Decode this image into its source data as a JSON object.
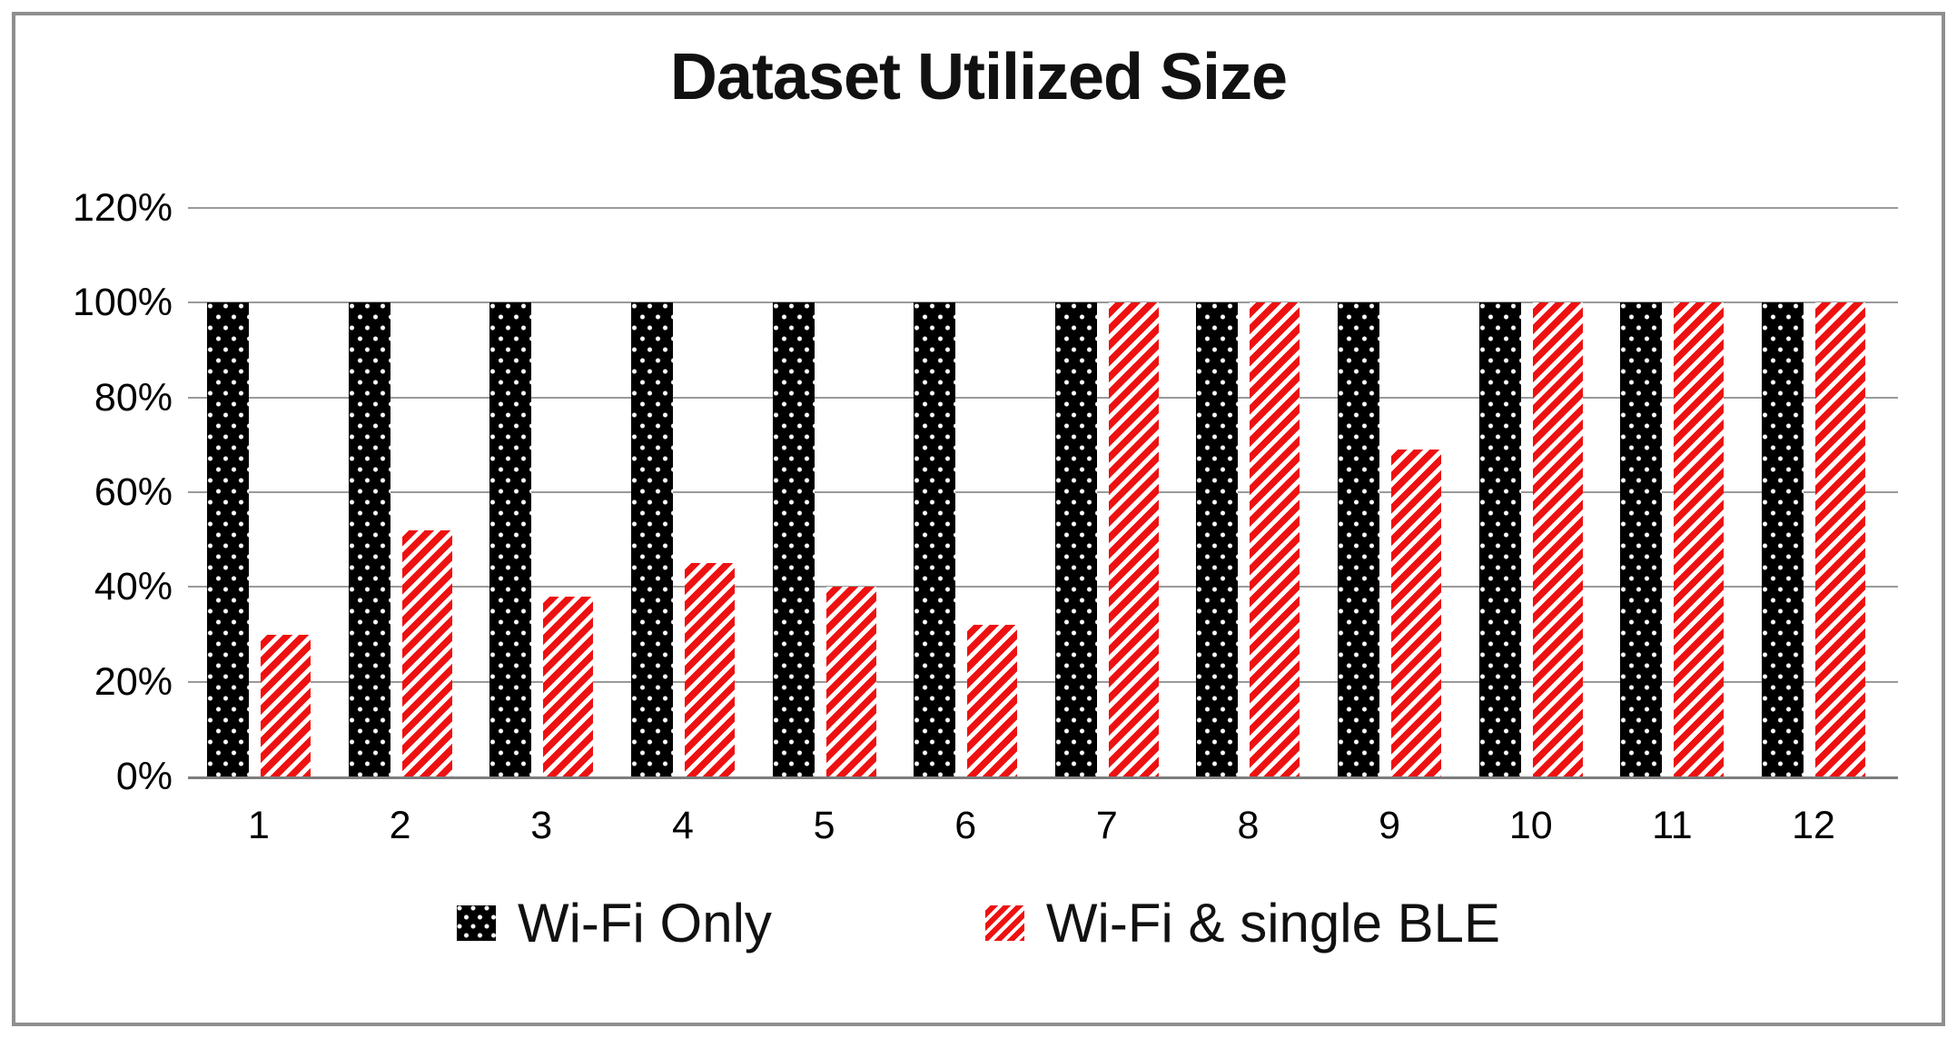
{
  "frame": {
    "border_color": "#8f8f8f"
  },
  "chart_data": {
    "type": "bar",
    "title": "Dataset Utilized Size",
    "categories": [
      "1",
      "2",
      "3",
      "4",
      "5",
      "6",
      "7",
      "8",
      "9",
      "10",
      "11",
      "12"
    ],
    "series": [
      {
        "name": "Wi-Fi Only",
        "pattern": "black-dots",
        "color": "#000000",
        "values": [
          100,
          100,
          100,
          100,
          100,
          100,
          100,
          100,
          100,
          100,
          100,
          100
        ]
      },
      {
        "name": "Wi-Fi & single BLE",
        "pattern": "red-diagonal-hatch",
        "color": "#ee1111",
        "values": [
          30,
          52,
          38,
          45,
          40,
          32,
          100,
          100,
          69,
          100,
          100,
          100
        ]
      }
    ],
    "xlabel": "",
    "ylabel": "",
    "y_ticks": [
      "120%",
      "100%",
      "80%",
      "60%",
      "40%",
      "20%",
      "0%"
    ],
    "ylim": [
      0,
      120
    ],
    "grid": true,
    "gridline_color": "#9a9a9a",
    "legend_position": "bottom"
  }
}
